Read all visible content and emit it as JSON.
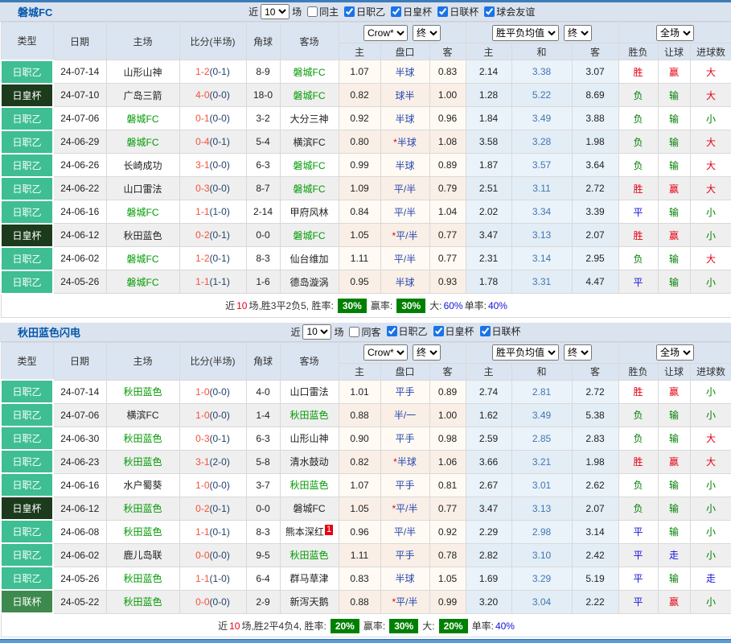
{
  "shared": {
    "near": "近",
    "unit": "场",
    "columns": {
      "type": "类型",
      "date": "日期",
      "home": "主场",
      "score": "比分(半场)",
      "corner": "角球",
      "away": "客场",
      "ah_home": "主",
      "ah_line": "盘口",
      "ah_away": "客",
      "ep_home": "主",
      "ep_draw": "和",
      "ep_away": "客",
      "result": "胜负",
      "handicap_result": "让球",
      "goals": "进球数"
    },
    "selects": {
      "source": "Crow*",
      "stage": "终",
      "avg": "胜平负均值",
      "scope": "全场"
    },
    "colors": {
      "league_green": "#3ebe92",
      "emperor_cup_green": "#1c3b1c",
      "levain_cup_green": "#3e8a4e",
      "focus_team_green": "#029a02",
      "score_red": "#f5503a",
      "line_navy": "#2747ad",
      "win_red": "#e60012",
      "draw_blue": "#1414d8",
      "loss_green": "#028102",
      "badge_green": "#008000",
      "title_blue": "#0458ab"
    }
  },
  "tables": [
    {
      "title": "磐城FC",
      "count": "10",
      "same_label": "同主",
      "same_checked": false,
      "filters": [
        {
          "label": "日职乙",
          "checked": true
        },
        {
          "label": "日皇杯",
          "checked": true
        },
        {
          "label": "日联杯",
          "checked": true
        },
        {
          "label": "球会友谊",
          "checked": true
        }
      ],
      "rows": [
        {
          "type": "日职乙",
          "type_class": "league",
          "date": "24-07-14",
          "home": "山形山神",
          "home_focus": false,
          "home_badge": "",
          "score": "1-2",
          "half": "(0-1)",
          "corner": "8-9",
          "away": "磐城FC",
          "away_focus": true,
          "away_badge": "",
          "ah_home": "1.07",
          "ah_star": false,
          "ah_line": "半球",
          "ah_away": "0.83",
          "ep_home": "2.14",
          "ep_draw": "3.38",
          "ep_away": "3.07",
          "res": "胜",
          "res_c": "red",
          "let": "赢",
          "let_c": "red",
          "goals": "大",
          "goals_c": "red"
        },
        {
          "type": "日皇杯",
          "type_class": "emperor",
          "date": "24-07-10",
          "home": "广岛三箭",
          "home_focus": false,
          "home_badge": "",
          "score": "4-0",
          "half": "(0-0)",
          "corner": "18-0",
          "away": "磐城FC",
          "away_focus": true,
          "away_badge": "",
          "ah_home": "0.82",
          "ah_star": false,
          "ah_line": "球半",
          "ah_away": "1.00",
          "ep_home": "1.28",
          "ep_draw": "5.22",
          "ep_away": "8.69",
          "res": "负",
          "res_c": "green",
          "let": "输",
          "let_c": "green",
          "goals": "大",
          "goals_c": "red"
        },
        {
          "type": "日职乙",
          "type_class": "league",
          "date": "24-07-06",
          "home": "磐城FC",
          "home_focus": true,
          "home_badge": "",
          "score": "0-1",
          "half": "(0-0)",
          "corner": "3-2",
          "away": "大分三神",
          "away_focus": false,
          "away_badge": "",
          "ah_home": "0.92",
          "ah_star": false,
          "ah_line": "半球",
          "ah_away": "0.96",
          "ep_home": "1.84",
          "ep_draw": "3.49",
          "ep_away": "3.88",
          "res": "负",
          "res_c": "green",
          "let": "输",
          "let_c": "green",
          "goals": "小",
          "goals_c": "green"
        },
        {
          "type": "日职乙",
          "type_class": "league",
          "date": "24-06-29",
          "home": "磐城FC",
          "home_focus": true,
          "home_badge": "",
          "score": "0-4",
          "half": "(0-1)",
          "corner": "5-4",
          "away": "横滨FC",
          "away_focus": false,
          "away_badge": "",
          "ah_home": "0.80",
          "ah_star": true,
          "ah_line": "半球",
          "ah_away": "1.08",
          "ep_home": "3.58",
          "ep_draw": "3.28",
          "ep_away": "1.98",
          "res": "负",
          "res_c": "green",
          "let": "输",
          "let_c": "green",
          "goals": "大",
          "goals_c": "red"
        },
        {
          "type": "日职乙",
          "type_class": "league",
          "date": "24-06-26",
          "home": "长崎成功",
          "home_focus": false,
          "home_badge": "",
          "score": "3-1",
          "half": "(0-0)",
          "corner": "6-3",
          "away": "磐城FC",
          "away_focus": true,
          "away_badge": "",
          "ah_home": "0.99",
          "ah_star": false,
          "ah_line": "半球",
          "ah_away": "0.89",
          "ep_home": "1.87",
          "ep_draw": "3.57",
          "ep_away": "3.64",
          "res": "负",
          "res_c": "green",
          "let": "输",
          "let_c": "green",
          "goals": "大",
          "goals_c": "red"
        },
        {
          "type": "日职乙",
          "type_class": "league",
          "date": "24-06-22",
          "home": "山口雷法",
          "home_focus": false,
          "home_badge": "",
          "score": "0-3",
          "half": "(0-0)",
          "corner": "8-7",
          "away": "磐城FC",
          "away_focus": true,
          "away_badge": "",
          "ah_home": "1.09",
          "ah_star": false,
          "ah_line": "平/半",
          "ah_away": "0.79",
          "ep_home": "2.51",
          "ep_draw": "3.11",
          "ep_away": "2.72",
          "res": "胜",
          "res_c": "red",
          "let": "赢",
          "let_c": "red",
          "goals": "大",
          "goals_c": "red"
        },
        {
          "type": "日职乙",
          "type_class": "league",
          "date": "24-06-16",
          "home": "磐城FC",
          "home_focus": true,
          "home_badge": "",
          "score": "1-1",
          "half": "(1-0)",
          "corner": "2-14",
          "away": "甲府风林",
          "away_focus": false,
          "away_badge": "",
          "ah_home": "0.84",
          "ah_star": false,
          "ah_line": "平/半",
          "ah_away": "1.04",
          "ep_home": "2.02",
          "ep_draw": "3.34",
          "ep_away": "3.39",
          "res": "平",
          "res_c": "blue",
          "let": "输",
          "let_c": "green",
          "goals": "小",
          "goals_c": "green"
        },
        {
          "type": "日皇杯",
          "type_class": "emperor",
          "date": "24-06-12",
          "home": "秋田蓝色",
          "home_focus": false,
          "home_badge": "",
          "score": "0-2",
          "half": "(0-1)",
          "corner": "0-0",
          "away": "磐城FC",
          "away_focus": true,
          "away_badge": "",
          "ah_home": "1.05",
          "ah_star": true,
          "ah_line": "平/半",
          "ah_away": "0.77",
          "ep_home": "3.47",
          "ep_draw": "3.13",
          "ep_away": "2.07",
          "res": "胜",
          "res_c": "red",
          "let": "赢",
          "let_c": "red",
          "goals": "小",
          "goals_c": "green"
        },
        {
          "type": "日职乙",
          "type_class": "league",
          "date": "24-06-02",
          "home": "磐城FC",
          "home_focus": true,
          "home_badge": "",
          "score": "1-2",
          "half": "(0-1)",
          "corner": "8-3",
          "away": "仙台维加",
          "away_focus": false,
          "away_badge": "",
          "ah_home": "1.11",
          "ah_star": false,
          "ah_line": "平/半",
          "ah_away": "0.77",
          "ep_home": "2.31",
          "ep_draw": "3.14",
          "ep_away": "2.95",
          "res": "负",
          "res_c": "green",
          "let": "输",
          "let_c": "green",
          "goals": "大",
          "goals_c": "red"
        },
        {
          "type": "日职乙",
          "type_class": "league",
          "date": "24-05-26",
          "home": "磐城FC",
          "home_focus": true,
          "home_badge": "",
          "score": "1-1",
          "half": "(1-1)",
          "corner": "1-6",
          "away": "德岛漩涡",
          "away_focus": false,
          "away_badge": "",
          "ah_home": "0.95",
          "ah_star": false,
          "ah_line": "半球",
          "ah_away": "0.93",
          "ep_home": "1.78",
          "ep_draw": "3.31",
          "ep_away": "4.47",
          "res": "平",
          "res_c": "blue",
          "let": "输",
          "let_c": "green",
          "goals": "小",
          "goals_c": "green"
        }
      ],
      "footer": {
        "segments": [
          {
            "t": "近",
            "s": "plain"
          },
          {
            "t": "10",
            "s": "red"
          },
          {
            "t": "场,胜3平2负5, 胜率:",
            "s": "plain"
          },
          {
            "t": "30%",
            "s": "badge"
          },
          {
            "t": "赢率:",
            "s": "plain"
          },
          {
            "t": "30%",
            "s": "badge"
          },
          {
            "t": "大:",
            "s": "plain"
          },
          {
            "t": "60%",
            "s": "blue"
          },
          {
            "t": "单率:",
            "s": "plain"
          },
          {
            "t": "40%",
            "s": "blue"
          }
        ]
      }
    },
    {
      "title": "秋田蓝色闪电",
      "count": "10",
      "same_label": "同客",
      "same_checked": false,
      "filters": [
        {
          "label": "日职乙",
          "checked": true
        },
        {
          "label": "日皇杯",
          "checked": true
        },
        {
          "label": "日联杯",
          "checked": true
        }
      ],
      "rows": [
        {
          "type": "日职乙",
          "type_class": "league",
          "date": "24-07-14",
          "home": "秋田蓝色",
          "home_focus": true,
          "home_badge": "",
          "score": "1-0",
          "half": "(0-0)",
          "corner": "4-0",
          "away": "山口雷法",
          "away_focus": false,
          "away_badge": "",
          "ah_home": "1.01",
          "ah_star": false,
          "ah_line": "平手",
          "ah_away": "0.89",
          "ep_home": "2.74",
          "ep_draw": "2.81",
          "ep_away": "2.72",
          "res": "胜",
          "res_c": "red",
          "let": "赢",
          "let_c": "red",
          "goals": "小",
          "goals_c": "green"
        },
        {
          "type": "日职乙",
          "type_class": "league",
          "date": "24-07-06",
          "home": "横滨FC",
          "home_focus": false,
          "home_badge": "",
          "score": "1-0",
          "half": "(0-0)",
          "corner": "1-4",
          "away": "秋田蓝色",
          "away_focus": true,
          "away_badge": "",
          "ah_home": "0.88",
          "ah_star": false,
          "ah_line": "半/一",
          "ah_away": "1.00",
          "ep_home": "1.62",
          "ep_draw": "3.49",
          "ep_away": "5.38",
          "res": "负",
          "res_c": "green",
          "let": "输",
          "let_c": "green",
          "goals": "小",
          "goals_c": "green"
        },
        {
          "type": "日职乙",
          "type_class": "league",
          "date": "24-06-30",
          "home": "秋田蓝色",
          "home_focus": true,
          "home_badge": "",
          "score": "0-3",
          "half": "(0-1)",
          "corner": "6-3",
          "away": "山形山神",
          "away_focus": false,
          "away_badge": "",
          "ah_home": "0.90",
          "ah_star": false,
          "ah_line": "平手",
          "ah_away": "0.98",
          "ep_home": "2.59",
          "ep_draw": "2.85",
          "ep_away": "2.83",
          "res": "负",
          "res_c": "green",
          "let": "输",
          "let_c": "green",
          "goals": "大",
          "goals_c": "red"
        },
        {
          "type": "日职乙",
          "type_class": "league",
          "date": "24-06-23",
          "home": "秋田蓝色",
          "home_focus": true,
          "home_badge": "",
          "score": "3-1",
          "half": "(2-0)",
          "corner": "5-8",
          "away": "清水鼓动",
          "away_focus": false,
          "away_badge": "",
          "ah_home": "0.82",
          "ah_star": true,
          "ah_line": "半球",
          "ah_away": "1.06",
          "ep_home": "3.66",
          "ep_draw": "3.21",
          "ep_away": "1.98",
          "res": "胜",
          "res_c": "red",
          "let": "赢",
          "let_c": "red",
          "goals": "大",
          "goals_c": "red"
        },
        {
          "type": "日职乙",
          "type_class": "league",
          "date": "24-06-16",
          "home": "水户蜀葵",
          "home_focus": false,
          "home_badge": "",
          "score": "1-0",
          "half": "(0-0)",
          "corner": "3-7",
          "away": "秋田蓝色",
          "away_focus": true,
          "away_badge": "",
          "ah_home": "1.07",
          "ah_star": false,
          "ah_line": "平手",
          "ah_away": "0.81",
          "ep_home": "2.67",
          "ep_draw": "3.01",
          "ep_away": "2.62",
          "res": "负",
          "res_c": "green",
          "let": "输",
          "let_c": "green",
          "goals": "小",
          "goals_c": "green"
        },
        {
          "type": "日皇杯",
          "type_class": "emperor",
          "date": "24-06-12",
          "home": "秋田蓝色",
          "home_focus": true,
          "home_badge": "",
          "score": "0-2",
          "half": "(0-1)",
          "corner": "0-0",
          "away": "磐城FC",
          "away_focus": false,
          "away_badge": "",
          "ah_home": "1.05",
          "ah_star": true,
          "ah_line": "平/半",
          "ah_away": "0.77",
          "ep_home": "3.47",
          "ep_draw": "3.13",
          "ep_away": "2.07",
          "res": "负",
          "res_c": "green",
          "let": "输",
          "let_c": "green",
          "goals": "小",
          "goals_c": "green"
        },
        {
          "type": "日职乙",
          "type_class": "league",
          "date": "24-06-08",
          "home": "秋田蓝色",
          "home_focus": true,
          "home_badge": "",
          "score": "1-1",
          "half": "(0-1)",
          "corner": "8-3",
          "away": "熊本深红",
          "away_focus": false,
          "away_badge": "1",
          "ah_home": "0.96",
          "ah_star": false,
          "ah_line": "平/半",
          "ah_away": "0.92",
          "ep_home": "2.29",
          "ep_draw": "2.98",
          "ep_away": "3.14",
          "res": "平",
          "res_c": "blue",
          "let": "输",
          "let_c": "green",
          "goals": "小",
          "goals_c": "green"
        },
        {
          "type": "日职乙",
          "type_class": "league",
          "date": "24-06-02",
          "home": "鹿儿岛联",
          "home_focus": false,
          "home_badge": "",
          "score": "0-0",
          "half": "(0-0)",
          "corner": "9-5",
          "away": "秋田蓝色",
          "away_focus": true,
          "away_badge": "",
          "ah_home": "1.11",
          "ah_star": false,
          "ah_line": "平手",
          "ah_away": "0.78",
          "ep_home": "2.82",
          "ep_draw": "3.10",
          "ep_away": "2.42",
          "res": "平",
          "res_c": "blue",
          "let": "走",
          "let_c": "blue",
          "goals": "小",
          "goals_c": "green"
        },
        {
          "type": "日职乙",
          "type_class": "league",
          "date": "24-05-26",
          "home": "秋田蓝色",
          "home_focus": true,
          "home_badge": "",
          "score": "1-1",
          "half": "(1-0)",
          "corner": "6-4",
          "away": "群马草津",
          "away_focus": false,
          "away_badge": "",
          "ah_home": "0.83",
          "ah_star": false,
          "ah_line": "半球",
          "ah_away": "1.05",
          "ep_home": "1.69",
          "ep_draw": "3.29",
          "ep_away": "5.19",
          "res": "平",
          "res_c": "blue",
          "let": "输",
          "let_c": "green",
          "goals": "走",
          "goals_c": "blue"
        },
        {
          "type": "日联杯",
          "type_class": "levain",
          "date": "24-05-22",
          "home": "秋田蓝色",
          "home_focus": true,
          "home_badge": "",
          "score": "0-0",
          "half": "(0-0)",
          "corner": "2-9",
          "away": "新泻天鹅",
          "away_focus": false,
          "away_badge": "",
          "ah_home": "0.88",
          "ah_star": true,
          "ah_line": "平/半",
          "ah_away": "0.99",
          "ep_home": "3.20",
          "ep_draw": "3.04",
          "ep_away": "2.22",
          "res": "平",
          "res_c": "blue",
          "let": "赢",
          "let_c": "red",
          "goals": "小",
          "goals_c": "green"
        }
      ],
      "footer": {
        "segments": [
          {
            "t": "近",
            "s": "plain"
          },
          {
            "t": "10",
            "s": "red"
          },
          {
            "t": "场,胜2平4负4, 胜率:",
            "s": "plain"
          },
          {
            "t": "20%",
            "s": "badge"
          },
          {
            "t": "赢率:",
            "s": "plain"
          },
          {
            "t": "30%",
            "s": "badge"
          },
          {
            "t": "大:",
            "s": "plain"
          },
          {
            "t": "20%",
            "s": "badge"
          },
          {
            "t": "单率:",
            "s": "plain"
          },
          {
            "t": "40%",
            "s": "blue"
          }
        ]
      }
    }
  ]
}
